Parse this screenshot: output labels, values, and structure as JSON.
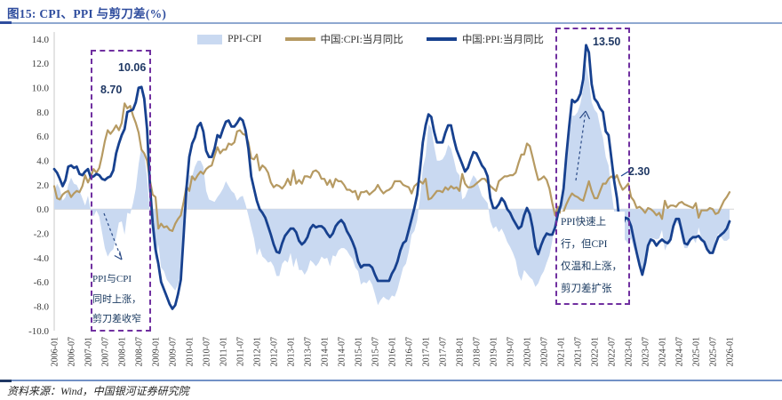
{
  "figure": {
    "title": "图15: CPI、PPI 与剪刀差(%)",
    "source": "资料来源：Wind，中国银河证券研究院"
  },
  "legend": [
    {
      "label": "PPI-CPI",
      "type": "area",
      "color": "#c9d9f1"
    },
    {
      "label": "中国:CPI:当月同比",
      "type": "line",
      "color": "#b69a62"
    },
    {
      "label": "中国:PPI:当月同比",
      "type": "line",
      "color": "#17418f"
    }
  ],
  "annotations": {
    "ppi_peak_2008": "10.06",
    "cpi_peak_2008": "8.70",
    "ppi_peak_2021": "13.50",
    "cpi_peak_2021": "2.30",
    "box1_note": "PPI与CPI\n同时上涨，\n剪刀差收窄",
    "box2_note": "PPI快速上\n行，但CPI\n仅温和上涨，\n剪刀差扩张"
  },
  "chart_data": {
    "type": "line+area",
    "title": "CPI、PPI 与剪刀差(%)",
    "x_start": "2006-01",
    "x_end": "2026-01",
    "x_frequency": "monthly",
    "ylim": [
      -10,
      14
    ],
    "grid": "zero-line-only",
    "legend_position": "top-center",
    "y_tick_labels": [
      "14.0",
      "12.0",
      "10.0",
      "8.0",
      "6.0",
      "4.0",
      "2.0",
      "0.0",
      "-2.0",
      "-4.0",
      "-6.0",
      "-8.0",
      "-10.0"
    ],
    "x_tick_labels": [
      "2006-01",
      "2006-07",
      "2007-01",
      "2007-07",
      "2008-01",
      "2008-07",
      "2009-01",
      "2009-07",
      "2010-01",
      "2010-07",
      "2011-01",
      "2011-07",
      "2012-01",
      "2012-07",
      "2013-01",
      "2013-07",
      "2014-01",
      "2014-07",
      "2015-01",
      "2015-07",
      "2016-01",
      "2016-07",
      "2017-01",
      "2017-07",
      "2018-01",
      "2018-07",
      "2019-01",
      "2019-07",
      "2020-01",
      "2020-07",
      "2021-01",
      "2021-07",
      "2022-01",
      "2022-07",
      "2023-01",
      "2023-07",
      "2024-01",
      "2024-07",
      "2025-01",
      "2025-07",
      "2026-01"
    ],
    "area": {
      "name": "PPI-CPI",
      "color": "#c9d9f1",
      "derive": "PPI minus CPI, filled to zero baseline"
    },
    "series": [
      {
        "name": "中国:CPI:当月同比",
        "color": "#b69a62",
        "values": [
          1.9,
          0.9,
          0.8,
          1.2,
          1.4,
          1.5,
          1.0,
          1.3,
          1.5,
          1.4,
          1.9,
          2.8,
          2.2,
          2.7,
          3.3,
          3.0,
          3.4,
          4.4,
          5.6,
          6.5,
          6.2,
          6.5,
          6.9,
          6.5,
          7.1,
          8.7,
          8.3,
          8.5,
          7.7,
          7.1,
          6.3,
          4.9,
          4.6,
          4.0,
          2.4,
          1.2,
          1.0,
          -1.6,
          -1.2,
          -1.5,
          -1.4,
          -1.7,
          -1.8,
          -1.2,
          -0.8,
          -0.5,
          0.6,
          1.9,
          1.5,
          2.7,
          2.4,
          2.8,
          3.1,
          2.9,
          3.3,
          3.5,
          3.6,
          4.4,
          5.1,
          4.6,
          4.9,
          4.9,
          5.4,
          5.3,
          5.5,
          6.4,
          6.5,
          6.2,
          6.1,
          5.5,
          4.2,
          4.1,
          4.5,
          3.2,
          3.6,
          3.4,
          3.0,
          2.2,
          1.8,
          2.0,
          1.9,
          1.7,
          2.0,
          2.5,
          2.0,
          3.2,
          2.1,
          2.4,
          2.1,
          2.7,
          2.7,
          2.6,
          3.1,
          3.2,
          3.0,
          2.5,
          2.5,
          2.0,
          2.4,
          1.8,
          2.5,
          2.3,
          2.3,
          2.0,
          1.6,
          1.6,
          1.4,
          1.5,
          0.8,
          1.4,
          1.4,
          1.5,
          1.2,
          1.4,
          1.6,
          2.0,
          1.6,
          1.3,
          1.5,
          1.6,
          1.8,
          2.3,
          2.3,
          2.3,
          2.0,
          1.9,
          1.8,
          1.3,
          1.9,
          2.1,
          2.3,
          2.1,
          2.5,
          0.8,
          0.9,
          1.2,
          1.5,
          1.5,
          1.4,
          1.8,
          1.6,
          1.9,
          1.7,
          1.8,
          1.5,
          2.9,
          2.1,
          1.8,
          1.8,
          1.9,
          2.1,
          2.3,
          2.5,
          2.5,
          2.2,
          1.9,
          1.7,
          1.5,
          2.3,
          2.5,
          2.7,
          2.7,
          2.8,
          2.8,
          3.0,
          3.8,
          4.5,
          4.5,
          5.4,
          5.2,
          4.3,
          3.3,
          2.4,
          2.5,
          2.7,
          2.4,
          1.7,
          0.5,
          -0.5,
          0.2,
          -0.3,
          -0.2,
          0.4,
          0.9,
          1.3,
          1.1,
          1.0,
          0.8,
          0.7,
          1.5,
          2.3,
          1.5,
          0.9,
          0.9,
          1.5,
          2.1,
          2.1,
          2.5,
          2.7,
          2.5,
          2.8,
          2.1,
          1.6,
          1.8,
          2.1,
          1.0,
          0.7,
          0.1,
          0.2,
          0.0,
          -0.3,
          0.1,
          0.0,
          -0.2,
          -0.5,
          -0.3,
          -0.8,
          0.7,
          0.1,
          0.3,
          0.3,
          0.2,
          0.5,
          0.6,
          0.4,
          0.3,
          0.2,
          0.1,
          0.5,
          -0.7,
          -0.1,
          -0.1,
          -0.1,
          0.1,
          0.0,
          -0.4,
          -0.3,
          0.2,
          0.7,
          1.0,
          1.4
        ]
      },
      {
        "name": "中国:PPI:当月同比",
        "color": "#17418f",
        "values": [
          3.3,
          3.0,
          2.5,
          1.9,
          2.4,
          3.5,
          3.6,
          3.4,
          3.5,
          2.9,
          2.8,
          3.1,
          3.3,
          2.6,
          2.7,
          2.9,
          2.8,
          2.5,
          2.4,
          2.6,
          2.7,
          3.2,
          4.6,
          5.4,
          6.1,
          6.6,
          8.0,
          8.1,
          8.2,
          8.8,
          10.0,
          10.06,
          9.1,
          6.6,
          2.0,
          -1.1,
          -3.3,
          -4.5,
          -6.0,
          -6.6,
          -7.2,
          -7.8,
          -8.2,
          -7.9,
          -7.0,
          -5.8,
          -2.1,
          1.7,
          4.3,
          5.4,
          5.9,
          6.8,
          7.1,
          6.4,
          4.8,
          4.3,
          4.3,
          5.0,
          6.1,
          5.9,
          6.6,
          7.2,
          7.3,
          6.8,
          6.8,
          7.1,
          7.5,
          7.3,
          6.5,
          5.0,
          2.7,
          1.7,
          0.7,
          0.0,
          -0.3,
          -0.7,
          -1.4,
          -2.1,
          -2.9,
          -3.5,
          -3.6,
          -2.8,
          -2.2,
          -1.9,
          -1.6,
          -1.6,
          -1.9,
          -2.6,
          -2.9,
          -2.7,
          -2.3,
          -1.6,
          -1.3,
          -1.5,
          -1.4,
          -1.4,
          -1.6,
          -2.0,
          -2.3,
          -2.0,
          -1.4,
          -1.1,
          -0.9,
          -1.2,
          -1.8,
          -2.2,
          -2.7,
          -3.3,
          -4.3,
          -4.8,
          -4.6,
          -4.6,
          -4.6,
          -4.8,
          -5.4,
          -5.9,
          -5.9,
          -5.9,
          -5.9,
          -5.9,
          -5.3,
          -4.9,
          -4.3,
          -3.4,
          -2.8,
          -2.6,
          -1.7,
          -0.8,
          0.1,
          1.2,
          3.3,
          5.5,
          6.9,
          7.8,
          7.6,
          6.4,
          5.5,
          5.5,
          5.5,
          6.3,
          6.9,
          6.9,
          5.8,
          4.9,
          4.3,
          3.7,
          3.1,
          3.4,
          4.1,
          4.7,
          4.6,
          4.1,
          3.6,
          3.3,
          2.7,
          0.9,
          0.1,
          0.1,
          0.4,
          0.9,
          0.6,
          0.0,
          -0.3,
          -0.8,
          -1.2,
          -1.6,
          -1.4,
          -0.5,
          0.1,
          -0.4,
          -1.5,
          -3.1,
          -3.7,
          -3.0,
          -2.4,
          -2.0,
          -2.1,
          -2.1,
          -1.5,
          -0.4,
          0.3,
          1.7,
          4.4,
          6.8,
          9.0,
          8.8,
          9.0,
          9.5,
          10.7,
          13.5,
          12.9,
          10.3,
          9.1,
          8.8,
          8.3,
          8.0,
          6.4,
          6.1,
          4.2,
          2.3,
          0.9,
          -1.3,
          -1.3,
          -0.7,
          -0.8,
          -1.4,
          -2.5,
          -3.6,
          -4.6,
          -5.4,
          -4.4,
          -3.0,
          -2.5,
          -2.6,
          -3.0,
          -2.7,
          -2.5,
          -2.7,
          -2.8,
          -2.5,
          -1.4,
          -0.8,
          -0.8,
          -1.8,
          -2.8,
          -2.9,
          -2.5,
          -2.3,
          -2.3,
          -2.2,
          -2.5,
          -2.7,
          -3.3,
          -3.6,
          -3.6,
          -2.9,
          -2.3,
          -2.1,
          -1.9,
          -1.6,
          -1.0
        ]
      }
    ]
  }
}
